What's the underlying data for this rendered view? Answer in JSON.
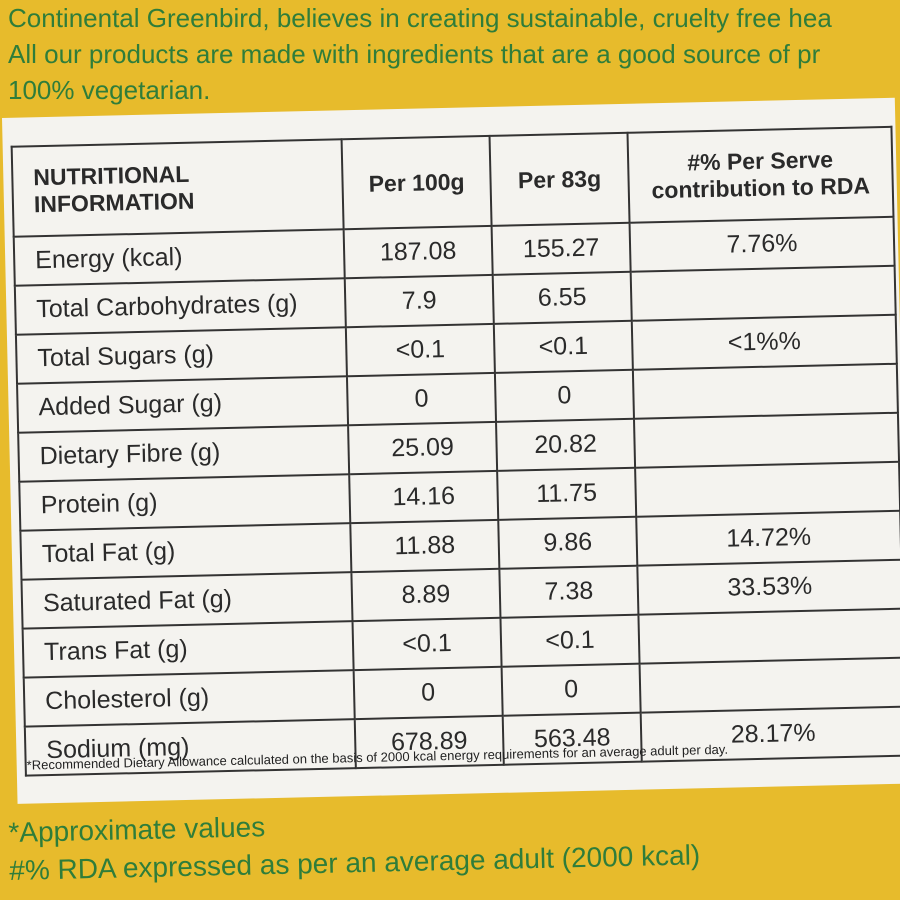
{
  "intro": {
    "line1": "Continental Greenbird, believes in creating sustainable, cruelty free hea",
    "line2": "All our products are made with ingredients that are a good source of pr",
    "line3": "100% vegetarian."
  },
  "table": {
    "headers": [
      "NUTRITIONAL INFORMATION",
      "Per 100g",
      "Per 83g",
      "#% Per Serve contribution to RDA"
    ],
    "rows": [
      {
        "name": "Energy (kcal)",
        "per100": "187.08",
        "per83": "155.27",
        "rda": "7.76%"
      },
      {
        "name": "Total Carbohydrates (g)",
        "per100": "7.9",
        "per83": "6.55",
        "rda": ""
      },
      {
        "name": "Total Sugars (g)",
        "per100": "<0.1",
        "per83": "<0.1",
        "rda": "<1%%"
      },
      {
        "name": "Added Sugar (g)",
        "per100": "0",
        "per83": "0",
        "rda": ""
      },
      {
        "name": "Dietary Fibre (g)",
        "per100": "25.09",
        "per83": "20.82",
        "rda": ""
      },
      {
        "name": "Protein (g)",
        "per100": "14.16",
        "per83": "11.75",
        "rda": ""
      },
      {
        "name": "Total Fat (g)",
        "per100": "11.88",
        "per83": "9.86",
        "rda": "14.72%"
      },
      {
        "name": "Saturated Fat (g)",
        "per100": "8.89",
        "per83": "7.38",
        "rda": "33.53%"
      },
      {
        "name": "Trans Fat (g)",
        "per100": "<0.1",
        "per83": "<0.1",
        "rda": ""
      },
      {
        "name": "Cholesterol (g)",
        "per100": "0",
        "per83": "0",
        "rda": ""
      },
      {
        "name": "Sodium (mg)",
        "per100": "678.89",
        "per83": "563.48",
        "rda": "28.17%"
      }
    ],
    "footnote": "*Recommended Dietary Allowance calculated on the basis of 2000 kcal energy requirements for an average adult per day."
  },
  "bottom": {
    "line1": "*Approximate values",
    "line2": "#% RDA expressed as per an average adult (2000 kcal)"
  },
  "colors": {
    "background": "#e7bb2c",
    "text_green": "#2f7d3a",
    "panel": "#f4f3ef"
  }
}
